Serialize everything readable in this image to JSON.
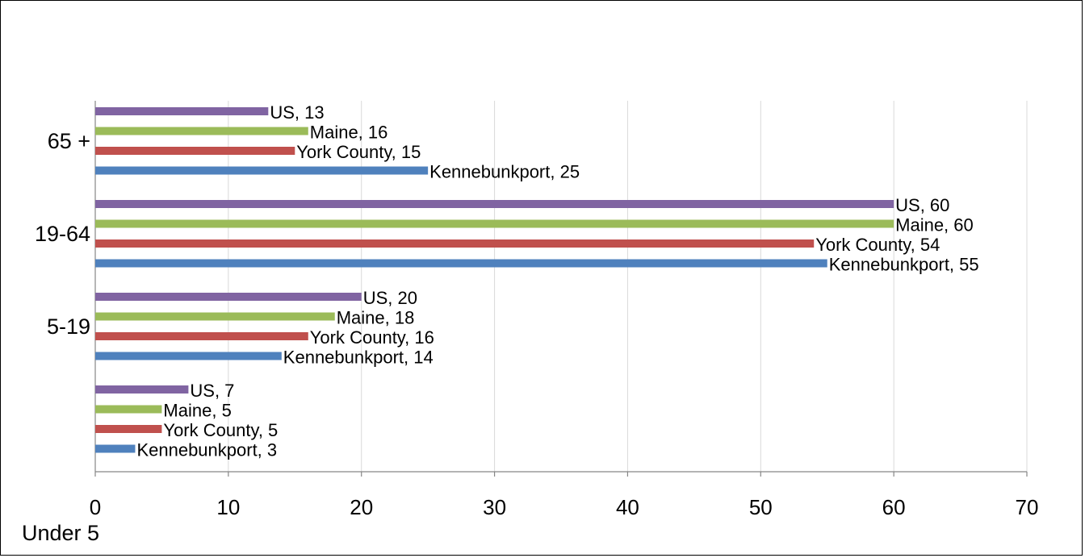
{
  "chart_data": {
    "type": "bar",
    "orientation": "horizontal",
    "categories": [
      "65 +",
      "19-64",
      "5-19",
      "Under 5"
    ],
    "series": [
      {
        "name": "US",
        "values": [
          13,
          60,
          20,
          7
        ],
        "color": "#8064a2"
      },
      {
        "name": "Maine",
        "values": [
          16,
          60,
          18,
          5
        ],
        "color": "#9bbb59"
      },
      {
        "name": "York County",
        "values": [
          15,
          54,
          16,
          5
        ],
        "color": "#c0504d"
      },
      {
        "name": "Kennebunkport",
        "values": [
          25,
          55,
          14,
          3
        ],
        "color": "#4f81bd"
      }
    ],
    "xlim": [
      0,
      70
    ],
    "xticks": [
      "0",
      "10",
      "20",
      "30",
      "40",
      "50",
      "60",
      "70"
    ],
    "grid": true,
    "data_labels": "series name, value"
  }
}
